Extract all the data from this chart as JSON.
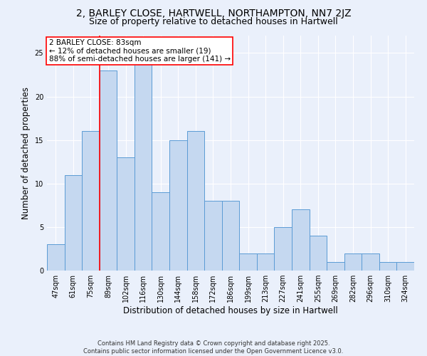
{
  "title_line1": "2, BARLEY CLOSE, HARTWELL, NORTHAMPTON, NN7 2JZ",
  "title_line2": "Size of property relative to detached houses in Hartwell",
  "xlabel": "Distribution of detached houses by size in Hartwell",
  "ylabel": "Number of detached properties",
  "footer": "Contains HM Land Registry data © Crown copyright and database right 2025.\nContains public sector information licensed under the Open Government Licence v3.0.",
  "bins": [
    "47sqm",
    "61sqm",
    "75sqm",
    "89sqm",
    "102sqm",
    "116sqm",
    "130sqm",
    "144sqm",
    "158sqm",
    "172sqm",
    "186sqm",
    "199sqm",
    "213sqm",
    "227sqm",
    "241sqm",
    "255sqm",
    "269sqm",
    "282sqm",
    "296sqm",
    "310sqm",
    "324sqm"
  ],
  "values": [
    3,
    11,
    16,
    23,
    13,
    24,
    9,
    15,
    16,
    8,
    8,
    2,
    2,
    5,
    7,
    4,
    1,
    2,
    2,
    1,
    1
  ],
  "bar_color": "#c5d8f0",
  "bar_edge_color": "#5b9bd5",
  "vline_x": 2.5,
  "vline_color": "red",
  "annotation_text": "2 BARLEY CLOSE: 83sqm\n← 12% of detached houses are smaller (19)\n88% of semi-detached houses are larger (141) →",
  "annotation_box_color": "white",
  "annotation_box_edge_color": "red",
  "ylim": [
    0,
    27
  ],
  "yticks": [
    0,
    5,
    10,
    15,
    20,
    25
  ],
  "bg_color": "#eaf0fb",
  "grid_color": "white",
  "title_fontsize": 10,
  "subtitle_fontsize": 9,
  "axis_label_fontsize": 8.5,
  "tick_fontsize": 7,
  "annotation_fontsize": 7.5,
  "footer_fontsize": 6
}
